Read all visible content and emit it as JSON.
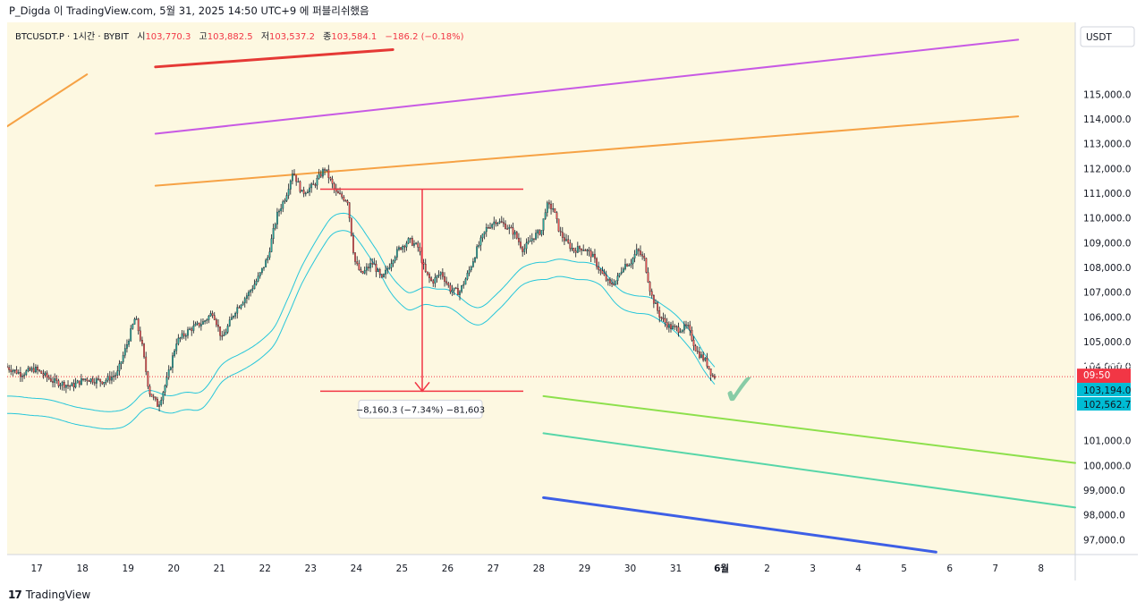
{
  "header": {
    "attribution": "P_Digda 이 TradingView.com, 5월 31, 2025 14:50 UTC+9 에 퍼블리쉬했음"
  },
  "footer": {
    "logo_mark": "17",
    "brand": "TradingView"
  },
  "symbol_line": {
    "symbol": "BTCUSDT.P · 1시간 · BYBIT",
    "o_label": "시",
    "o": "103,770.3",
    "h_label": "고",
    "h": "103,882.5",
    "l_label": "저",
    "l": "103,537.2",
    "c_label": "종",
    "c": "103,584.1",
    "chg": "−186.2 (−0.18%)"
  },
  "chart_data": {
    "type": "candlestick",
    "currency": "USDT",
    "y_ticks": [
      115000,
      114000,
      113000,
      112000,
      111000,
      110000,
      109000,
      108000,
      107000,
      106000,
      105000,
      104000,
      101000,
      100000,
      99000,
      98000,
      97000
    ],
    "y_tick_labels": [
      "115,000.0",
      "114,000.0",
      "113,000.0",
      "112,000.0",
      "111,000.0",
      "110,000.0",
      "109,000.0",
      "108,000.0",
      "107,000.0",
      "106,000.0",
      "105,000.0",
      "104,000.0",
      "101,000.0",
      "100,000.0",
      "99,000.0",
      "98,000.0",
      "97,000.0"
    ],
    "ylim": [
      96400,
      117900
    ],
    "x_ticks": [
      {
        "label": "17",
        "day": 0
      },
      {
        "label": "18",
        "day": 1
      },
      {
        "label": "19",
        "day": 2
      },
      {
        "label": "20",
        "day": 3
      },
      {
        "label": "21",
        "day": 4
      },
      {
        "label": "22",
        "day": 5
      },
      {
        "label": "23",
        "day": 6
      },
      {
        "label": "24",
        "day": 7
      },
      {
        "label": "25",
        "day": 8
      },
      {
        "label": "26",
        "day": 9
      },
      {
        "label": "27",
        "day": 10
      },
      {
        "label": "28",
        "day": 11
      },
      {
        "label": "29",
        "day": 12
      },
      {
        "label": "30",
        "day": 13
      },
      {
        "label": "31",
        "day": 14
      },
      {
        "label": "6월",
        "day": 15,
        "bold": true
      },
      {
        "label": "2",
        "day": 16
      },
      {
        "label": "3",
        "day": 17
      },
      {
        "label": "4",
        "day": 18
      },
      {
        "label": "5",
        "day": 19
      },
      {
        "label": "6",
        "day": 20
      },
      {
        "label": "7",
        "day": 21
      },
      {
        "label": "8",
        "day": 22
      }
    ],
    "xlim_days": [
      -0.65,
      22.75
    ],
    "price_path": [
      [
        -0.65,
        104000
      ],
      [
        -0.3,
        103700
      ],
      [
        0,
        103900
      ],
      [
        0.4,
        103400
      ],
      [
        0.8,
        103200
      ],
      [
        1.1,
        103500
      ],
      [
        1.5,
        103400
      ],
      [
        1.8,
        103700
      ],
      [
        2.0,
        104800
      ],
      [
        2.2,
        106000
      ],
      [
        2.35,
        104800
      ],
      [
        2.5,
        103000
      ],
      [
        2.7,
        102400
      ],
      [
        2.9,
        103500
      ],
      [
        3.1,
        105000
      ],
      [
        3.4,
        105500
      ],
      [
        3.7,
        105800
      ],
      [
        3.9,
        106200
      ],
      [
        4.1,
        105100
      ],
      [
        4.4,
        106300
      ],
      [
        4.7,
        107000
      ],
      [
        4.9,
        107600
      ],
      [
        5.1,
        108400
      ],
      [
        5.3,
        110100
      ],
      [
        5.5,
        110900
      ],
      [
        5.65,
        111900
      ],
      [
        5.85,
        111000
      ],
      [
        6.1,
        111300
      ],
      [
        6.35,
        112000
      ],
      [
        6.6,
        111000
      ],
      [
        6.85,
        110700
      ],
      [
        7.0,
        108300
      ],
      [
        7.15,
        107700
      ],
      [
        7.4,
        108200
      ],
      [
        7.6,
        107500
      ],
      [
        7.85,
        108400
      ],
      [
        8.0,
        108800
      ],
      [
        8.2,
        109100
      ],
      [
        8.4,
        108800
      ],
      [
        8.55,
        107800
      ],
      [
        8.7,
        107400
      ],
      [
        8.9,
        107800
      ],
      [
        9.1,
        107100
      ],
      [
        9.3,
        107000
      ],
      [
        9.5,
        107800
      ],
      [
        9.7,
        108800
      ],
      [
        9.9,
        109600
      ],
      [
        10.1,
        109900
      ],
      [
        10.3,
        109700
      ],
      [
        10.5,
        109400
      ],
      [
        10.7,
        108700
      ],
      [
        10.9,
        109200
      ],
      [
        11.1,
        109500
      ],
      [
        11.2,
        110500
      ],
      [
        11.35,
        110400
      ],
      [
        11.5,
        109400
      ],
      [
        11.65,
        109000
      ],
      [
        11.8,
        108700
      ],
      [
        12.0,
        108800
      ],
      [
        12.2,
        108500
      ],
      [
        12.4,
        107800
      ],
      [
        12.6,
        107300
      ],
      [
        12.75,
        107500
      ],
      [
        12.9,
        108100
      ],
      [
        13.05,
        108200
      ],
      [
        13.2,
        108700
      ],
      [
        13.35,
        108300
      ],
      [
        13.5,
        106900
      ],
      [
        13.7,
        106000
      ],
      [
        13.9,
        105600
      ],
      [
        14.1,
        105500
      ],
      [
        14.3,
        105600
      ],
      [
        14.5,
        104600
      ],
      [
        14.7,
        104200
      ],
      [
        14.85,
        103600
      ]
    ],
    "annotations": {
      "measure_label": "−8,160.3 (−7.34%) −81,603",
      "measure_from_price": 111160,
      "measure_to_price": 103000,
      "last_price": "103,584.1",
      "last_price_value": 103584.1,
      "countdown": "09:50",
      "band_upper_label": "103,194.0",
      "band_lower_label": "102,562.7",
      "check_mark": "✓"
    },
    "trend_lines": [
      {
        "name": "orange-channel-top",
        "color": "#f6a245",
        "from": [
          -0.65,
          113700
        ],
        "to": [
          1.1,
          115800
        ]
      },
      {
        "name": "red-upper-line",
        "color": "#e53935",
        "from": [
          2.6,
          116100
        ],
        "to": [
          7.8,
          116800
        ]
      },
      {
        "name": "purple-line",
        "color": "#c85ae4",
        "from": [
          2.6,
          113400
        ],
        "to": [
          21.5,
          117200
        ]
      },
      {
        "name": "orange-line",
        "color": "#f6a245",
        "from": [
          2.6,
          111300
        ],
        "to": [
          21.5,
          114100
        ]
      },
      {
        "name": "green-line",
        "color": "#8de04c",
        "from": [
          11.1,
          102800
        ],
        "to": [
          22.75,
          100100
        ]
      },
      {
        "name": "teal-line",
        "color": "#57d6a8",
        "from": [
          11.1,
          101300
        ],
        "to": [
          22.75,
          98300
        ]
      },
      {
        "name": "blue-line",
        "color": "#3d5fe6",
        "from": [
          11.1,
          98700
        ],
        "to": [
          19.7,
          96500
        ]
      }
    ],
    "colors": {
      "bg": "#fdf8e1",
      "up": "#26a69a",
      "down": "#ef5350",
      "band": "#26c6da",
      "measure": "#f23645",
      "check": "#7cc8a0",
      "last_price_tag": "#f23645",
      "band_tag": "#00bcd4"
    }
  }
}
